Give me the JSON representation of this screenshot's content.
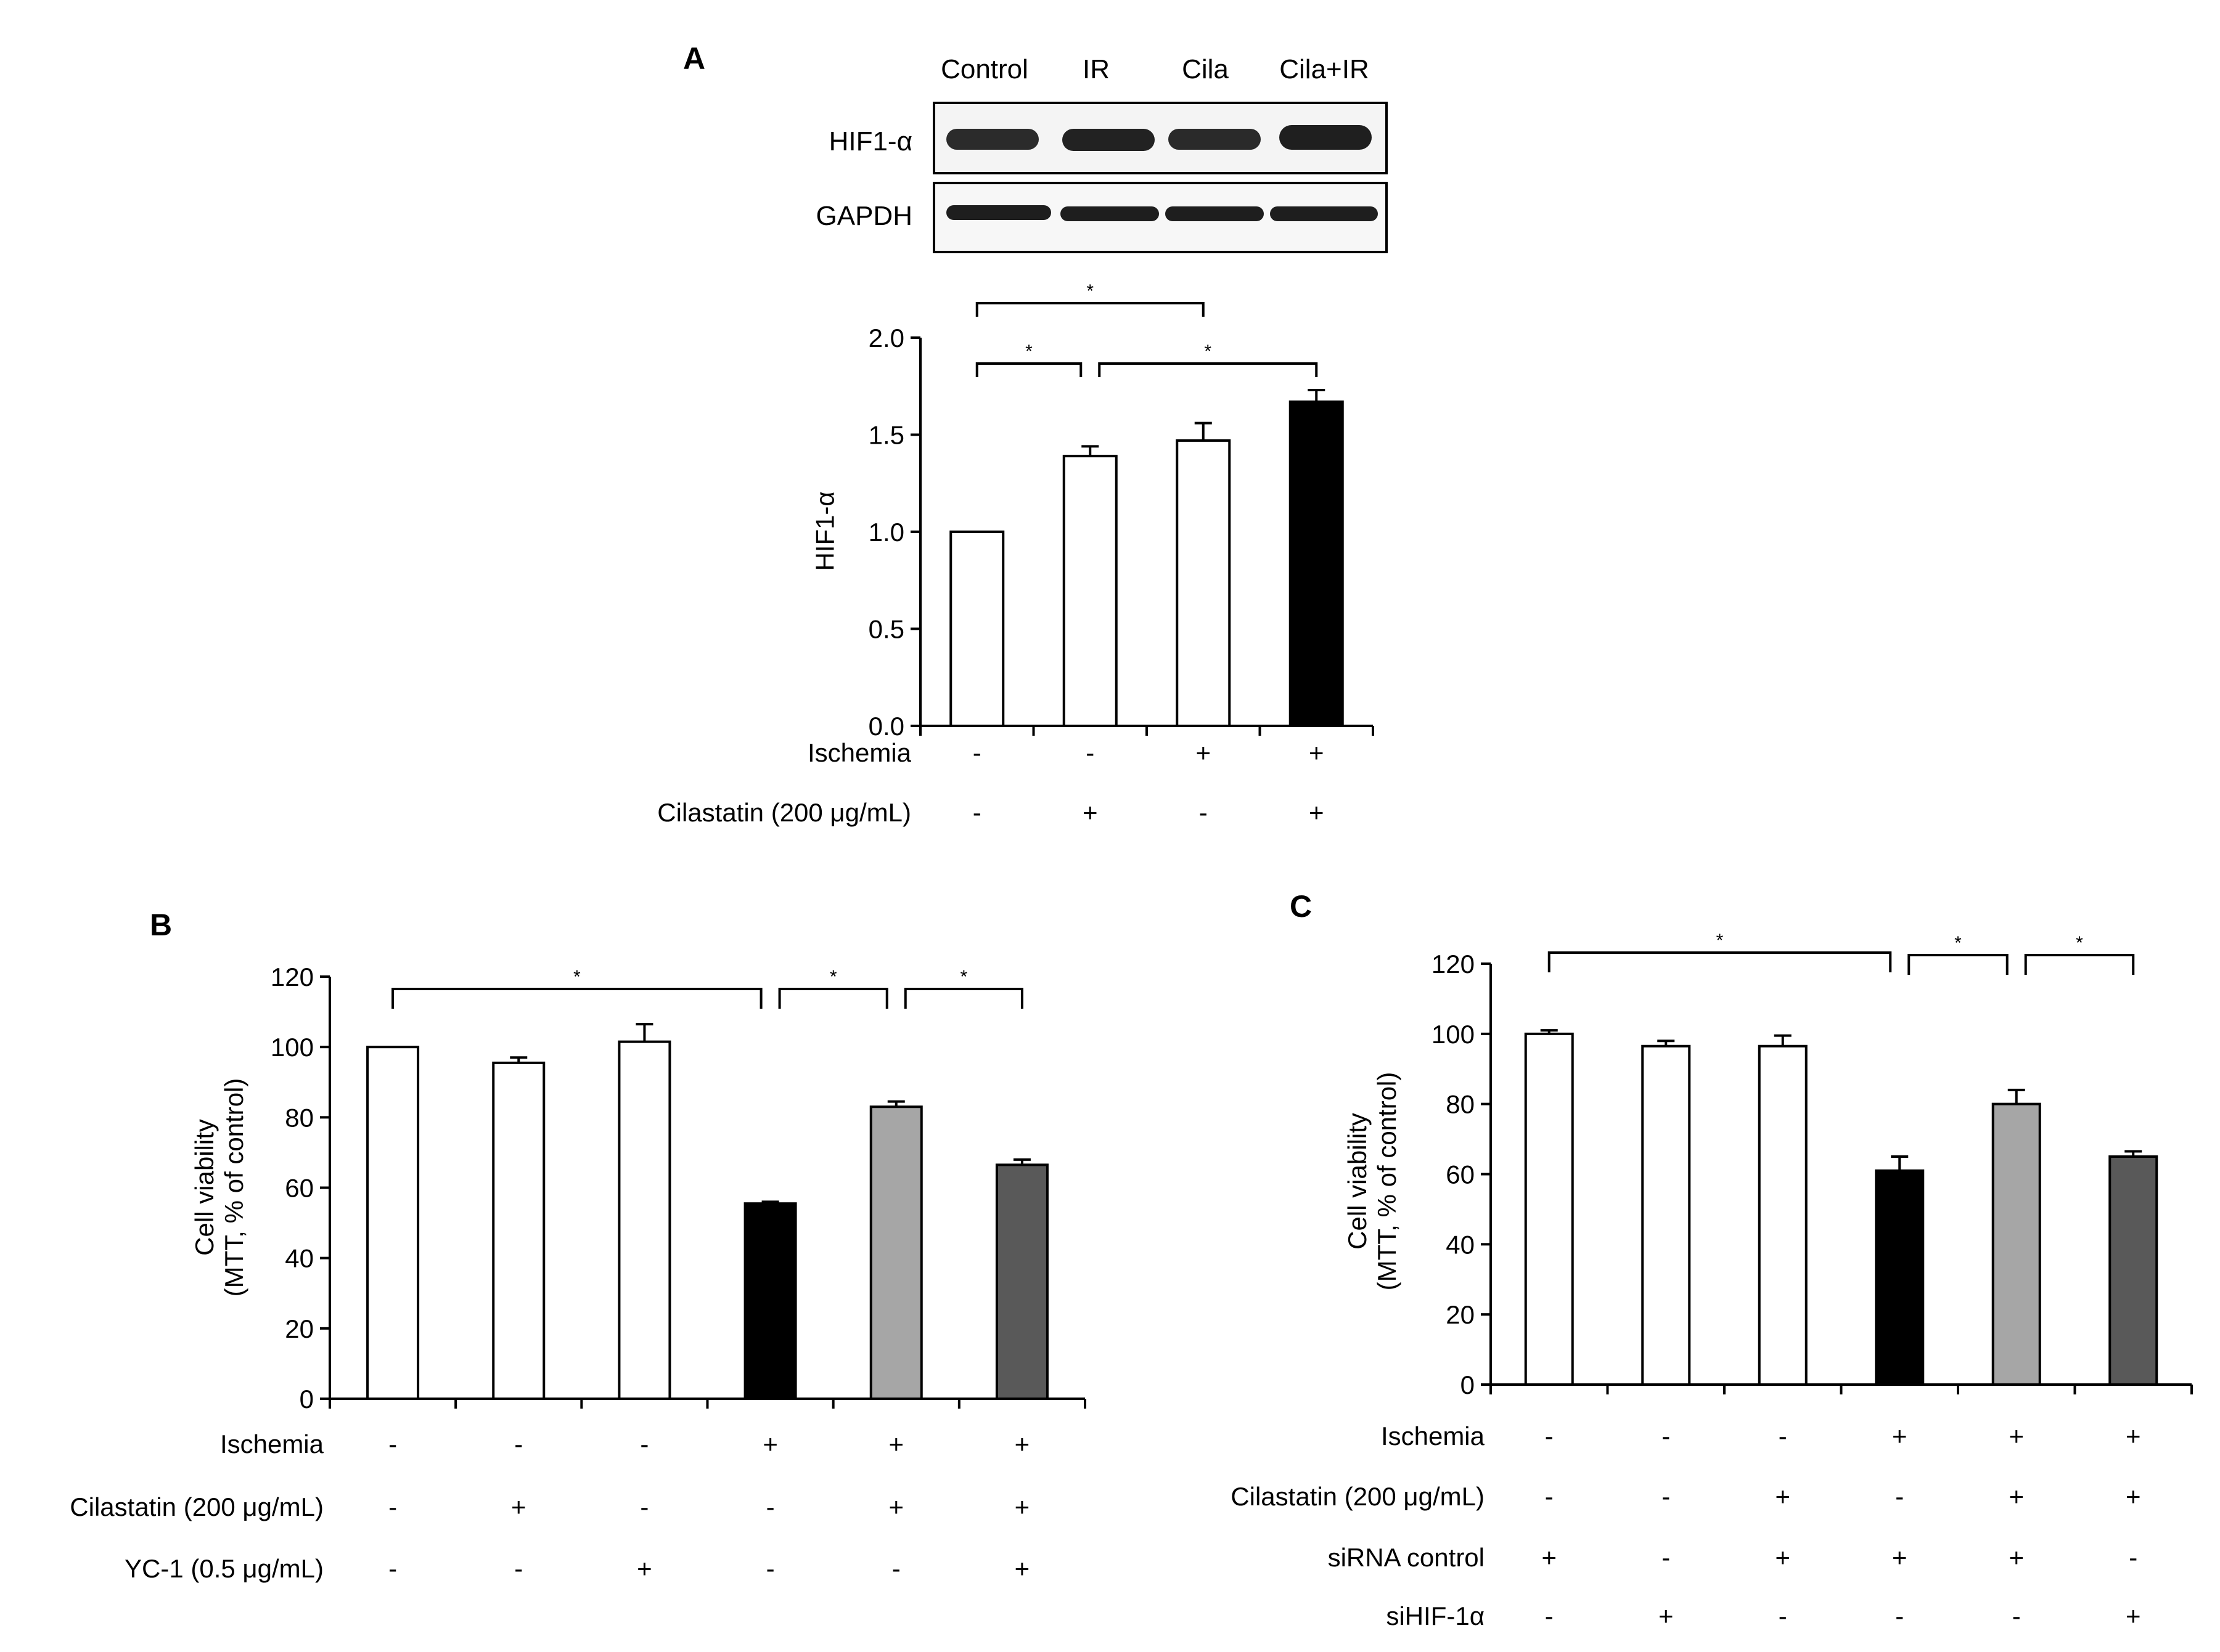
{
  "figure": {
    "panels": [
      "A",
      "B",
      "C"
    ]
  },
  "blot": {
    "lanes": [
      "Control",
      "IR",
      "Cila",
      "Cila+IR"
    ],
    "rows": [
      "HIF1-α",
      "GAPDH"
    ]
  },
  "chart_data": [
    {
      "panel": "A",
      "type": "bar",
      "ylabel": "HIF1-α",
      "ylim": [
        0,
        2.0
      ],
      "yticks": [
        "0.0",
        "0.5",
        "1.0",
        "1.5",
        "2.0"
      ],
      "values": [
        1.0,
        1.39,
        1.47,
        1.67
      ],
      "errors": [
        0,
        0.05,
        0.09,
        0.06
      ],
      "bar_colors": [
        "#ffffff",
        "#ffffff",
        "#ffffff",
        "#000000"
      ],
      "treatments": [
        {
          "label": "Ischemia",
          "symbols": [
            "-",
            "-",
            "+",
            "+"
          ]
        },
        {
          "label": "Cilastatin (200 μg/mL)",
          "symbols": [
            "-",
            "+",
            "-",
            "+"
          ]
        }
      ],
      "significance": [
        {
          "from": 0,
          "to": 2,
          "label": "*"
        },
        {
          "from": 0,
          "to": 1,
          "label": "*"
        },
        {
          "from": 1,
          "to": 3,
          "label": "*"
        }
      ]
    },
    {
      "panel": "B",
      "type": "bar",
      "ylabel": [
        "Cell viability",
        "(MTT, % of control)"
      ],
      "ylim": [
        0,
        120
      ],
      "yticks": [
        "0",
        "20",
        "40",
        "60",
        "80",
        "100",
        "120"
      ],
      "values": [
        100,
        95.5,
        101.5,
        55.5,
        83,
        66.5
      ],
      "errors": [
        0,
        1.5,
        5,
        0.5,
        1.5,
        1.5
      ],
      "bar_colors": [
        "#ffffff",
        "#ffffff",
        "#ffffff",
        "#000000",
        "#a6a6a6",
        "#595959"
      ],
      "treatments": [
        {
          "label": "Ischemia",
          "symbols": [
            "-",
            "-",
            "-",
            "+",
            "+",
            "+"
          ]
        },
        {
          "label": "Cilastatin (200 μg/mL)",
          "symbols": [
            "-",
            "+",
            "-",
            "-",
            "+",
            "+"
          ]
        },
        {
          "label": "YC-1 (0.5 μg/mL)",
          "symbols": [
            "-",
            "-",
            "+",
            "-",
            "-",
            "+"
          ]
        }
      ],
      "significance": [
        {
          "from": 0,
          "to": 3,
          "label": "*"
        },
        {
          "from": 3,
          "to": 4,
          "label": "*"
        },
        {
          "from": 4,
          "to": 5,
          "label": "*"
        }
      ]
    },
    {
      "panel": "C",
      "type": "bar",
      "ylabel": [
        "Cell viability",
        "(MTT, % of control)"
      ],
      "ylim": [
        0,
        120
      ],
      "yticks": [
        "0",
        "20",
        "40",
        "60",
        "80",
        "100",
        "120"
      ],
      "values": [
        100,
        96.5,
        96.5,
        61,
        80,
        65
      ],
      "errors": [
        1,
        1.5,
        3,
        4,
        4,
        1.5
      ],
      "bar_colors": [
        "#ffffff",
        "#ffffff",
        "#ffffff",
        "#000000",
        "#a6a6a6",
        "#595959"
      ],
      "treatments": [
        {
          "label": "Ischemia",
          "symbols": [
            "-",
            "-",
            "-",
            "+",
            "+",
            "+"
          ]
        },
        {
          "label": "Cilastatin (200 μg/mL)",
          "symbols": [
            "-",
            "-",
            "+",
            "-",
            "+",
            "+"
          ]
        },
        {
          "label": "siRNA control",
          "symbols": [
            "+",
            "-",
            "+",
            "+",
            "+",
            "-"
          ]
        },
        {
          "label": "siHIF-1α",
          "symbols": [
            "-",
            "+",
            "-",
            "-",
            "-",
            "+"
          ]
        }
      ],
      "significance": [
        {
          "from": 0,
          "to": 3,
          "label": "*"
        },
        {
          "from": 3,
          "to": 4,
          "label": "*"
        },
        {
          "from": 4,
          "to": 5,
          "label": "*"
        }
      ]
    }
  ]
}
